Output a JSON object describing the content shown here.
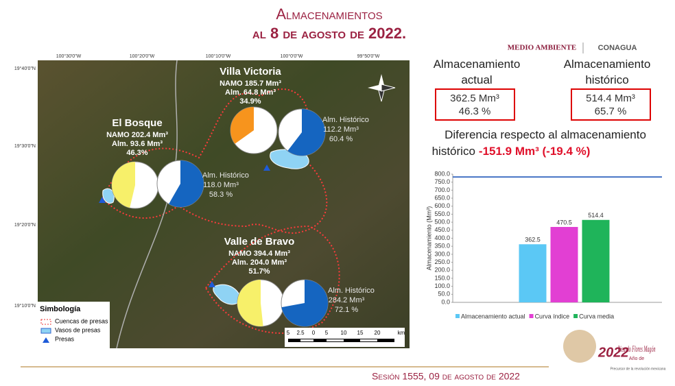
{
  "header": {
    "title_1": "Almacenamientos",
    "title_2": "al 8 de agosto de 2022.",
    "logo_1": "MEDIO AMBIENTE",
    "logo_2": "CONAGUA"
  },
  "summary": {
    "actual_label": "Almacenamiento actual",
    "actual_volume": "362.5 Mm³",
    "actual_pct": "46.3 %",
    "hist_label": "Almacenamiento histórico",
    "hist_volume": "514.4 Mm³",
    "hist_pct": "65.7 %",
    "diff_text": "Diferencia respecto al almacenamiento histórico",
    "diff_value": "-151.9 Mm³ (-19.4 %)"
  },
  "map": {
    "lon_labels": [
      "100°30'0\"W",
      "100°20'0\"W",
      "100°10'0\"W",
      "100°0'0\"W",
      "99°50'0\"W"
    ],
    "lat_labels": [
      "19°40'0\"N",
      "19°30'0\"N",
      "19°20'0\"N",
      "19°10'0\"N"
    ],
    "dams": [
      {
        "name": "Villa Victoria",
        "namo": "NAMO 185.7 Mm³",
        "alm": "Alm. 64.8 Mm³",
        "pct": 34.9,
        "pct_label": "34.9%",
        "color": "#f7941d",
        "hist_title": "Alm. Histórico",
        "hist_volume": "112.2 Mm³",
        "hist_pct": 60.4,
        "hist_pct_label": "60.4 %"
      },
      {
        "name": "El Bosque",
        "namo": "NAMO 202.4 Mm³",
        "alm": "Alm. 93.6 Mm³",
        "pct": 46.3,
        "pct_label": "46.3%",
        "color": "#f7f06a",
        "hist_title": "Alm. Histórico",
        "hist_volume": "118.0 Mm³",
        "hist_pct": 58.3,
        "hist_pct_label": "58.3 %"
      },
      {
        "name": "Valle de Bravo",
        "namo": "NAMO 394.4 Mm³",
        "alm": "Alm. 204.0 Mm³",
        "pct": 51.7,
        "pct_label": "51.7%",
        "color": "#f7f06a",
        "hist_title": "Alm. Histórico",
        "hist_volume": "284.2 Mm³",
        "hist_pct": 72.1,
        "hist_pct_label": "72.1 %"
      }
    ],
    "hist_color": "#1565c0",
    "legend": {
      "title": "Simbología",
      "items": [
        "Cuencas de presas",
        "Vasos de presas",
        "Presas"
      ]
    },
    "scale": [
      "5",
      "2.5",
      "0",
      "5",
      "10",
      "15",
      "20",
      "km"
    ]
  },
  "chart_data": {
    "type": "bar",
    "ylabel": "Almacenamiento (Mm³)",
    "categories": [
      null
    ],
    "series": [
      {
        "name": "Almacenamiento actual",
        "color": "#5bc8f5",
        "values": [
          362.5
        ]
      },
      {
        "name": "Curva índice",
        "color": "#e23fd3",
        "values": [
          470.5
        ]
      },
      {
        "name": "Curva media",
        "color": "#1fb45a",
        "values": [
          514.4
        ]
      }
    ],
    "capacity_line": 782.5,
    "capacity_color": "#4472c4",
    "ylim": [
      0,
      800
    ],
    "yticks": [
      {
        "value": 0,
        "label": "0.0"
      },
      {
        "value": 50,
        "label": "50.0"
      },
      {
        "value": 100,
        "label": "100.0"
      },
      {
        "value": 150,
        "label": "150.0"
      },
      {
        "value": 200,
        "label": "200.0"
      },
      {
        "value": 250,
        "label": "250.0"
      },
      {
        "value": 300,
        "label": "300.0"
      },
      {
        "value": 350,
        "label": "350.0"
      },
      {
        "value": 400,
        "label": "400.0"
      },
      {
        "value": 450,
        "label": "450.0"
      },
      {
        "value": 500,
        "label": "500.0"
      },
      {
        "value": 550,
        "label": "550.0"
      },
      {
        "value": 600,
        "label": "600.0"
      },
      {
        "value": 650,
        "label": "650.0"
      },
      {
        "value": 700,
        "label": "700.0"
      },
      {
        "value": 750,
        "label": "750.0"
      },
      {
        "value": 800,
        "label": "800.0"
      }
    ],
    "grid": false,
    "legend": "bottom"
  },
  "footer": {
    "session": "Sesión 1555, 09 de agosto de 2022",
    "logo_year": "2022",
    "logo_name": "Ricardo Flores Magón",
    "logo_year_of": "Año de",
    "logo_sub": "Precursor de la revolución mexicana"
  }
}
